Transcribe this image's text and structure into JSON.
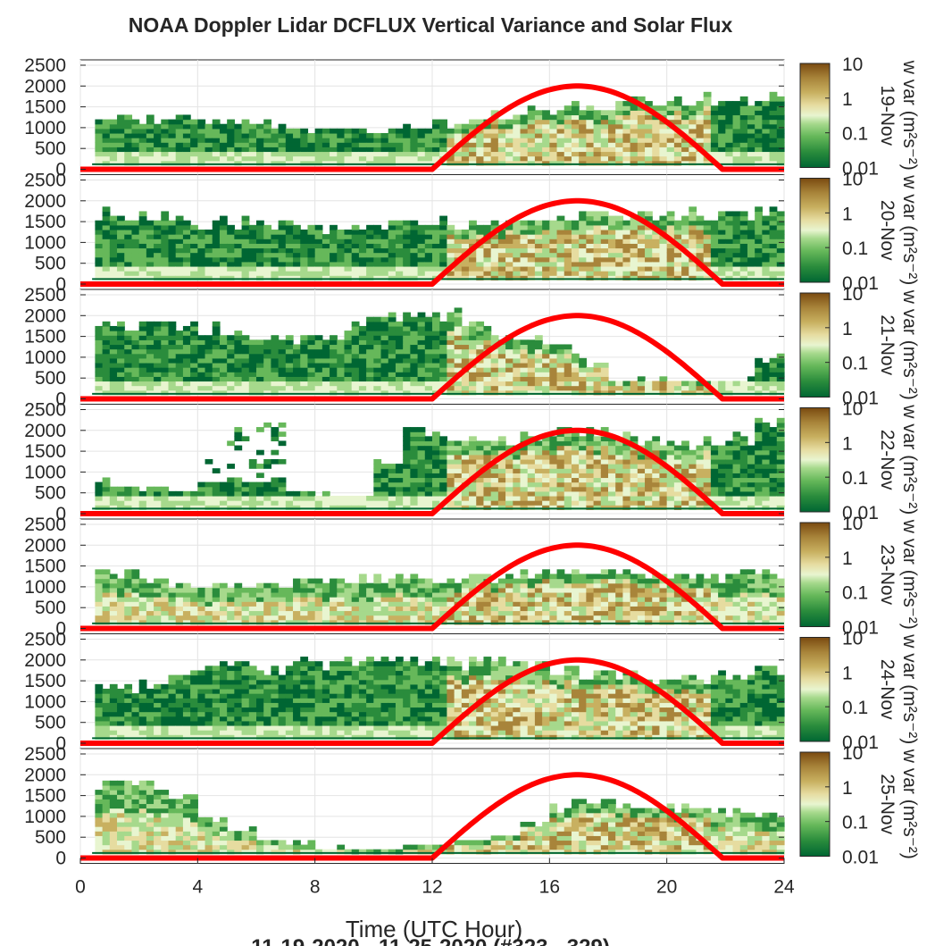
{
  "title": "NOAA Doppler Lidar DCFLUX Vertical Variance and Solar Flux",
  "xlabel": "Time (UTC Hour)",
  "footer": "11-19-2020 - 11-25-2020 (#323 - 329)",
  "colorbar_label": "w var (m²s⁻²)",
  "colors": {
    "solar_curve": "#ff0000",
    "colormap": [
      "#006633",
      "#2a8c3c",
      "#66b85a",
      "#a6d98c",
      "#e8f5d0",
      "#e6dca0",
      "#c8b060",
      "#a8843a",
      "#7a4a10"
    ],
    "ground_line": "#006633"
  },
  "chart_data": {
    "type": "heatmap",
    "x_range": [
      0,
      24
    ],
    "x_ticks": [
      "0",
      "4",
      "8",
      "12",
      "16",
      "20",
      "24"
    ],
    "y_range": [
      0,
      2500
    ],
    "y_ticks": [
      "0",
      "500",
      "1000",
      "1500",
      "2000",
      "2500"
    ],
    "colorbar_scale": "log",
    "colorbar_range": [
      0.01,
      10
    ],
    "colorbar_ticks": [
      "0.01",
      "0.1",
      "1",
      "10"
    ],
    "grid": true,
    "solar_flux": {
      "rise_hour": 12,
      "peak_hour": 16.9,
      "set_hour": 21.9,
      "peak_height": 2000
    },
    "days": [
      {
        "label": "19-Nov",
        "top": [
          1150,
          1150,
          1150,
          1150,
          1100,
          1050,
          1000,
          950,
          900,
          880,
          880,
          950,
          1050,
          1150,
          1250,
          1350,
          1400,
          1450,
          1500,
          1550,
          1600,
          1650,
          1650,
          1650
        ],
        "pattern": "green-night"
      },
      {
        "label": "20-Nov",
        "top": [
          1650,
          1650,
          1600,
          1500,
          1400,
          1400,
          1400,
          1400,
          1300,
          1300,
          1350,
          1400,
          1400,
          1400,
          1400,
          1450,
          1550,
          1600,
          1600,
          1600,
          1600,
          1600,
          1650,
          1650
        ],
        "pattern": "green-night"
      },
      {
        "label": "21-Nov",
        "top": [
          1700,
          1700,
          1700,
          1650,
          1600,
          1500,
          1450,
          1400,
          1400,
          1700,
          2000,
          2000,
          2000,
          1800,
          1400,
          1400,
          1200,
          800,
          400,
          400,
          400,
          400,
          400,
          900
        ],
        "pattern": "layered"
      },
      {
        "label": "22-Nov",
        "top": [
          800,
          600,
          550,
          500,
          1300,
          2000,
          2200,
          500,
          400,
          400,
          1200,
          1900,
          1800,
          1700,
          1700,
          1800,
          1900,
          1900,
          1800,
          1700,
          1600,
          1700,
          1800,
          2300
        ],
        "pattern": "sparse"
      },
      {
        "label": "23-Nov",
        "top": [
          1400,
          1300,
          1100,
          1000,
          950,
          950,
          1000,
          1050,
          1100,
          1150,
          1200,
          1150,
          1100,
          1150,
          1200,
          1250,
          1300,
          1300,
          1300,
          1250,
          1200,
          1200,
          1250,
          1300
        ],
        "pattern": "tan-low"
      },
      {
        "label": "24-Nov",
        "top": [
          1300,
          1300,
          1400,
          1700,
          1800,
          1800,
          1800,
          1850,
          1900,
          1900,
          1950,
          1950,
          1950,
          1900,
          1850,
          1800,
          1700,
          1600,
          1550,
          1500,
          1500,
          1500,
          1550,
          1600
        ],
        "pattern": "green-night"
      },
      {
        "label": "25-Nov",
        "top": [
          1600,
          1700,
          1700,
          1400,
          900,
          600,
          400,
          300,
          200,
          150,
          150,
          250,
          300,
          400,
          500,
          800,
          1200,
          1250,
          1250,
          1200,
          1150,
          1100,
          1050,
          1000
        ],
        "pattern": "tan-low"
      }
    ]
  }
}
